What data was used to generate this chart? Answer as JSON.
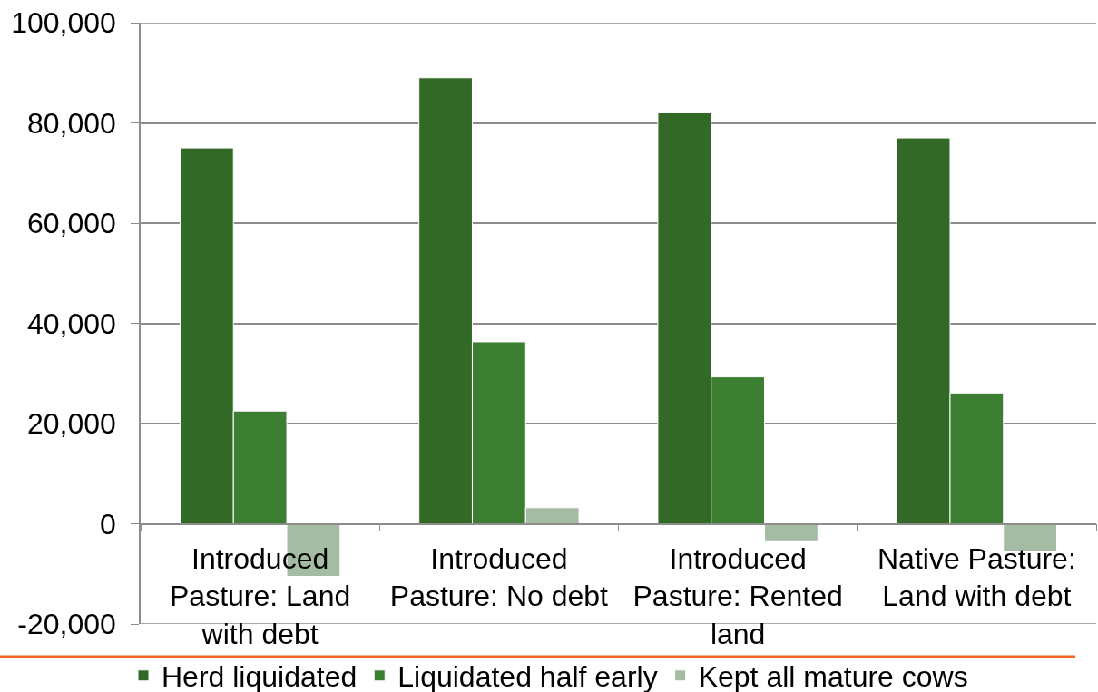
{
  "chart_data": {
    "type": "bar",
    "categories": [
      "Introduced Pasture: Land with debt",
      "Introduced Pasture: No debt",
      "Introduced Pasture: Rented land",
      "Native Pasture: Land with debt"
    ],
    "series": [
      {
        "name": "Herd liquidated",
        "color": "#336926",
        "values": [
          75000,
          89000,
          82000,
          77000
        ]
      },
      {
        "name": "Liquidated half early",
        "color": "#3d7f32",
        "values": [
          22500,
          36300,
          29300,
          26100
        ]
      },
      {
        "name": "Kept all mature cows",
        "color": "#a4bca4",
        "values": [
          -10500,
          3200,
          -3400,
          -5500
        ]
      }
    ],
    "ylim": [
      -20000,
      100000
    ],
    "yticks": [
      {
        "value": -20000,
        "label": "-20,000"
      },
      0,
      {
        "value": 20000,
        "label": "20,000"
      },
      {
        "value": 40000,
        "label": "40,000"
      },
      {
        "value": 60000,
        "label": "60,000"
      },
      {
        "value": 80000,
        "label": "80,000"
      },
      {
        "value": 100000,
        "label": "100,000"
      }
    ],
    "grid": "y",
    "legend": "bottom"
  }
}
